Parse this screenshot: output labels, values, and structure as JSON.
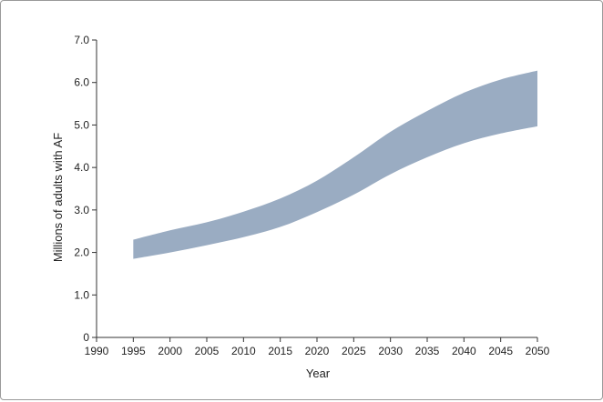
{
  "chart_data": {
    "type": "area",
    "title": "",
    "xlabel": "Year",
    "ylabel": "Millions of adults with AF",
    "xlim": [
      1990,
      2050
    ],
    "ylim": [
      0,
      7
    ],
    "x_ticks": [
      1990,
      1995,
      2000,
      2005,
      2010,
      2015,
      2020,
      2025,
      2030,
      2035,
      2040,
      2045,
      2050
    ],
    "y_ticks": [
      {
        "value": 0,
        "label": "0"
      },
      {
        "value": 1,
        "label": "1.0"
      },
      {
        "value": 2,
        "label": "2.0"
      },
      {
        "value": 3,
        "label": "3.0"
      },
      {
        "value": 4,
        "label": "4.0"
      },
      {
        "value": 5,
        "label": "5.0"
      },
      {
        "value": 6,
        "label": "6.0"
      },
      {
        "value": 7,
        "label": "7.0"
      }
    ],
    "grid": false,
    "band_color": "#9aacc2",
    "series": [
      {
        "x": [
          1995,
          2000,
          2005,
          2010,
          2015,
          2020,
          2025,
          2030,
          2035,
          2040,
          2045,
          2050
        ],
        "lower": [
          1.85,
          2.0,
          2.17,
          2.36,
          2.6,
          2.95,
          3.36,
          3.84,
          4.24,
          4.57,
          4.8,
          4.97
        ],
        "upper": [
          2.3,
          2.52,
          2.71,
          2.96,
          3.27,
          3.69,
          4.24,
          4.84,
          5.33,
          5.76,
          6.07,
          6.28
        ]
      }
    ]
  }
}
